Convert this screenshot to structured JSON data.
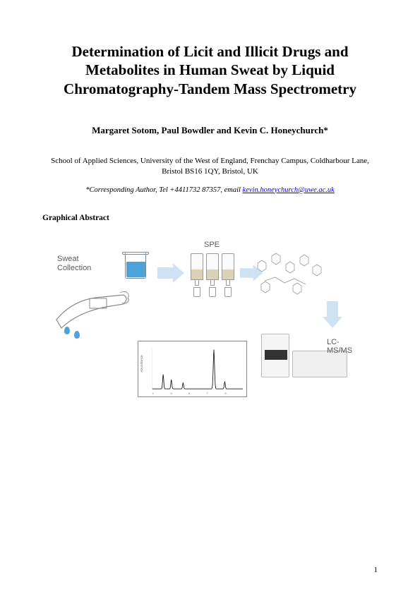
{
  "title": "Determination of Licit and Illicit Drugs and Metabolites in Human Sweat by Liquid Chromatography-Tandem Mass Spectrometry",
  "authors": "Margaret Sotom, Paul Bowdler and Kevin C. Honeychurch*",
  "affiliation": "School of Applied Sciences, University of the West of England, Frenchay Campus, Coldharbour Lane, Bristol BS16 1QY, Bristol, UK",
  "corresponding_prefix": "*Corresponding Author, Tel +4411732 87357, email ",
  "corresponding_email": "kevin.honeychurch@uwe.ac.uk",
  "section_heading": "Graphical Abstract",
  "page_number": "1",
  "graphic": {
    "label_sweat": "Sweat Collection",
    "label_spe": "SPE",
    "label_lcms": "LC-MS/MS",
    "arrow_color": "#cfe2f3",
    "liquid_color": "#4da3d8",
    "bg_color": "#ffffff",
    "chromatogram": {
      "xrange": [
        0,
        10
      ],
      "peaks_x": [
        1.2,
        2.1,
        3.4,
        6.8,
        8.0
      ],
      "peaks_h": [
        0.35,
        0.22,
        0.15,
        0.95,
        0.18
      ],
      "line_color": "#000000"
    }
  }
}
